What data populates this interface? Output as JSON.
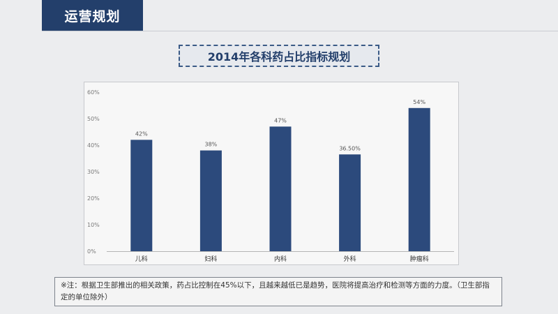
{
  "header": {
    "section_title": "运营规划"
  },
  "chart_data": {
    "type": "bar",
    "title": "2014年各科药占比指标规划",
    "categories": [
      "儿科",
      "妇科",
      "内科",
      "外科",
      "肿瘤科"
    ],
    "values": [
      42,
      38,
      47,
      36.5,
      54
    ],
    "data_labels": [
      "42%",
      "38%",
      "47%",
      "36.50%",
      "54%"
    ],
    "ylim": [
      0,
      60
    ],
    "yticks": [
      "0%",
      "10%",
      "20%",
      "30%",
      "40%",
      "50%",
      "60%"
    ],
    "xlabel": "",
    "ylabel": "",
    "grid": false,
    "bar_color": "#2c4a7c"
  },
  "note": {
    "text": "※注：根据卫生部推出的相关政策，药占比控制在45%以下，且越来越低已是趋势，医院将提高治疗和检测等方面的力度。（卫生部指定的单位除外）"
  }
}
